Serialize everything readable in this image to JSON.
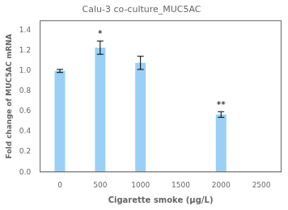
{
  "chart_data": {
    "type": "bar",
    "title": "Calu-3 co-culture_MUC5AC",
    "xlabel": "Cigarette smoke (μg/L)",
    "ylabel": "Fold change of MUC5AC mRNA",
    "x": [
      0,
      500,
      1000,
      2000
    ],
    "values": [
      1.0,
      1.23,
      1.08,
      0.57
    ],
    "errors": [
      0.015,
      0.065,
      0.065,
      0.028
    ],
    "annotations": [
      {
        "x": 500,
        "text": "*"
      },
      {
        "x": 2000,
        "text": "**"
      }
    ],
    "xlim": [
      -250,
      2750
    ],
    "xticks": [
      0,
      500,
      1000,
      1500,
      2000,
      2500
    ],
    "ylim": [
      0,
      1.5
    ],
    "yticks": [
      {
        "value": 0,
        "label": "0.0"
      },
      0.2,
      0.4,
      0.6,
      0.8,
      {
        "value": 1,
        "label": "1.0"
      },
      1.2,
      1.4
    ],
    "grid": false
  }
}
